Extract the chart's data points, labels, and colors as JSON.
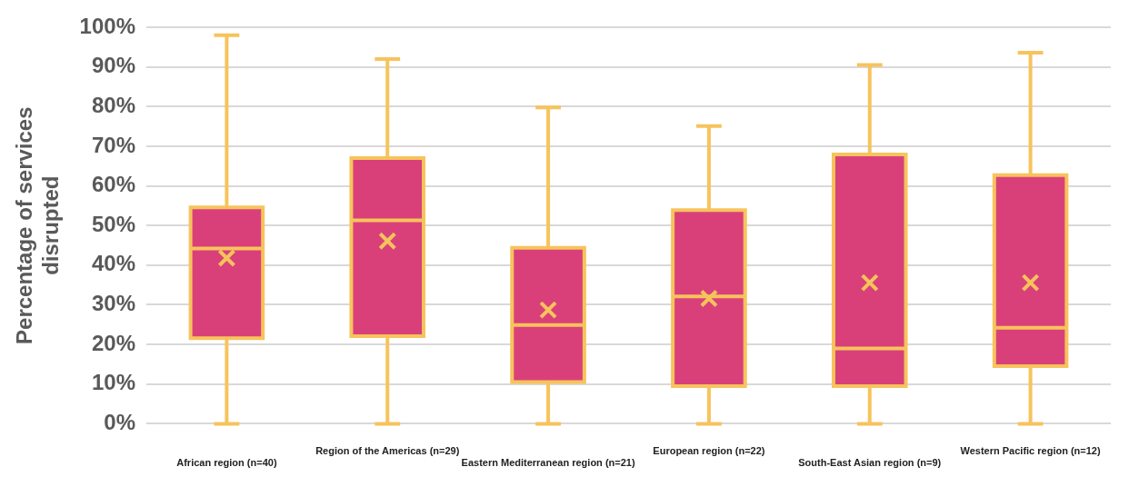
{
  "chart_data": {
    "type": "box",
    "ylabel": "Percentage of services disrupted",
    "categories": [
      "African region (n=40)",
      "Region of the Americas (n=29)",
      "Eastern Mediterranean region (n=21)",
      "European region (n=22)",
      "South-East Asian region (n=9)",
      "Western Pacific region (n=12)"
    ],
    "color": "#d9407a",
    "boxes": [
      {
        "low": 0,
        "q1": 21.6,
        "median": 44.2,
        "q3": 54.6,
        "high": 98,
        "mean": 41.8
      },
      {
        "low": 0,
        "q1": 22.1,
        "median": 51.3,
        "q3": 67,
        "high": 92,
        "mean": 46.1
      },
      {
        "low": 0,
        "q1": 10.5,
        "median": 24.9,
        "q3": 44.4,
        "high": 79.8,
        "mean": 28.7
      },
      {
        "low": 0,
        "q1": 9.5,
        "median": 32.1,
        "q3": 53.9,
        "high": 75.1,
        "mean": 31.6
      },
      {
        "low": 0,
        "q1": 9.5,
        "median": 19,
        "q3": 67.9,
        "high": 90.5,
        "mean": 35.6
      },
      {
        "low": 0,
        "q1": 14.5,
        "median": 24.2,
        "q3": 62.7,
        "high": 93.6,
        "mean": 35.6
      }
    ],
    "ylim": [
      0,
      100
    ],
    "yticks": [
      {
        "value": 0,
        "label": "0%"
      },
      {
        "value": 10,
        "label": "10%"
      },
      {
        "value": 20,
        "label": "20%"
      },
      {
        "value": 30,
        "label": "30%"
      },
      {
        "value": 40,
        "label": "40%"
      },
      {
        "value": 50,
        "label": "50%"
      },
      {
        "value": 60,
        "label": "60%"
      },
      {
        "value": 70,
        "label": "70%"
      },
      {
        "value": 80,
        "label": "80%"
      },
      {
        "value": 90,
        "label": "90%"
      },
      {
        "value": 100,
        "label": "100%"
      }
    ],
    "grid": "y",
    "legend": false
  }
}
